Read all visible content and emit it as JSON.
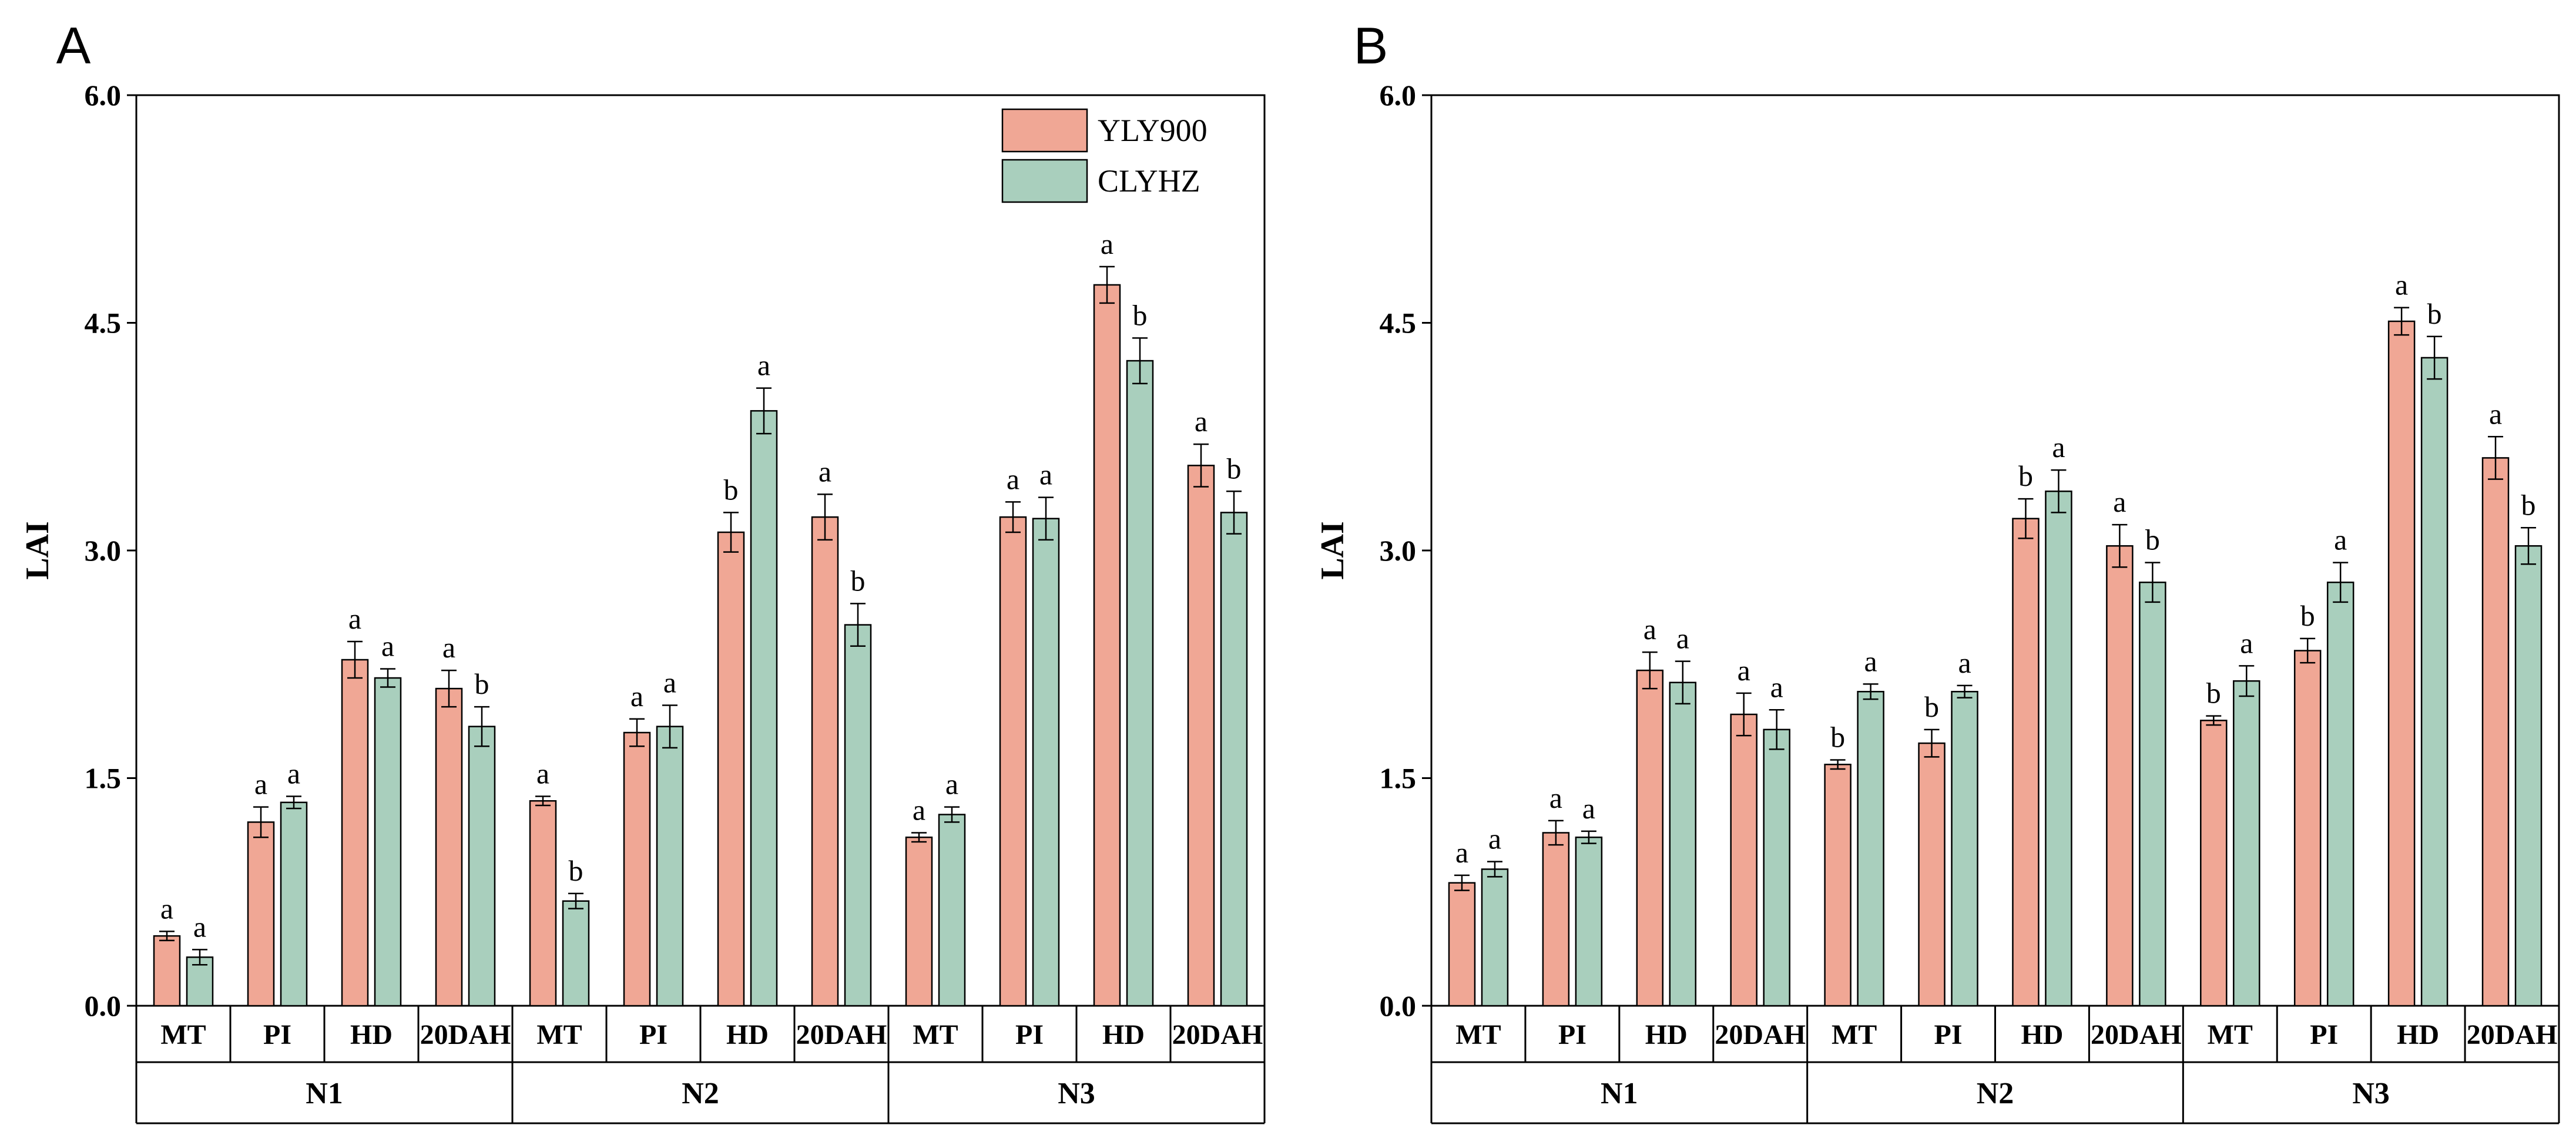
{
  "figure": {
    "series_colors": {
      "YLY900": "#f0a795",
      "CLYHZ": "#a9cfbd"
    },
    "letter_color": "#000000"
  },
  "chart_data": [
    {
      "type": "bar",
      "panel_label": "A",
      "ylabel": "LAI",
      "ylim": [
        0,
        6
      ],
      "yticks": [
        "0.0",
        "1.5",
        "3.0",
        "4.5",
        "6.0"
      ],
      "groups": [
        "N1",
        "N2",
        "N3"
      ],
      "stages": [
        "MT",
        "PI",
        "HD",
        "20DAH"
      ],
      "legend": {
        "placement": "top-right",
        "entries": [
          "YLY900",
          "CLYHZ"
        ]
      },
      "series": [
        {
          "name": "YLY900",
          "values": [
            [
              0.46,
              1.21,
              2.28,
              2.09
            ],
            [
              1.35,
              1.8,
              3.12,
              3.22
            ],
            [
              1.11,
              3.22,
              4.75,
              3.56
            ]
          ],
          "errors": [
            [
              0.03,
              0.1,
              0.12,
              0.12
            ],
            [
              0.03,
              0.09,
              0.13,
              0.15
            ],
            [
              0.03,
              0.1,
              0.12,
              0.14
            ]
          ],
          "letters": [
            [
              "a",
              "a",
              "a",
              "a"
            ],
            [
              "a",
              "a",
              "b",
              "a"
            ],
            [
              "a",
              "a",
              "a",
              "a"
            ]
          ]
        },
        {
          "name": "CLYHZ",
          "values": [
            [
              0.32,
              1.34,
              2.16,
              1.84
            ],
            [
              0.69,
              1.84,
              3.92,
              2.51
            ],
            [
              1.26,
              3.21,
              4.25,
              3.25
            ]
          ],
          "errors": [
            [
              0.05,
              0.04,
              0.06,
              0.13
            ],
            [
              0.05,
              0.14,
              0.15,
              0.14
            ],
            [
              0.05,
              0.14,
              0.15,
              0.14
            ]
          ],
          "letters": [
            [
              "a",
              "a",
              "a",
              "b"
            ],
            [
              "b",
              "a",
              "a",
              "b"
            ],
            [
              "a",
              "a",
              "b",
              "b"
            ]
          ]
        }
      ]
    },
    {
      "type": "bar",
      "panel_label": "B",
      "ylabel": "LAI",
      "ylim": [
        0,
        6
      ],
      "yticks": [
        "0.0",
        "1.5",
        "3.0",
        "4.5",
        "6.0"
      ],
      "groups": [
        "N1",
        "N2",
        "N3"
      ],
      "stages": [
        "MT",
        "PI",
        "HD",
        "20DAH"
      ],
      "series": [
        {
          "name": "YLY900",
          "values": [
            [
              0.81,
              1.14,
              2.21,
              1.92
            ],
            [
              1.59,
              1.73,
              3.21,
              3.03
            ],
            [
              1.88,
              2.34,
              4.51,
              3.61
            ]
          ],
          "errors": [
            [
              0.05,
              0.08,
              0.12,
              0.14
            ],
            [
              0.03,
              0.09,
              0.13,
              0.14
            ],
            [
              0.03,
              0.08,
              0.09,
              0.14
            ]
          ],
          "letters": [
            [
              "a",
              "a",
              "a",
              "a"
            ],
            [
              "b",
              "b",
              "b",
              "a"
            ],
            [
              "b",
              "b",
              "a",
              "a"
            ]
          ]
        },
        {
          "name": "CLYHZ",
          "values": [
            [
              0.9,
              1.11,
              2.13,
              1.82
            ],
            [
              2.07,
              2.07,
              3.39,
              2.79
            ],
            [
              2.14,
              2.79,
              4.27,
              3.03
            ]
          ],
          "errors": [
            [
              0.05,
              0.04,
              0.14,
              0.13
            ],
            [
              0.05,
              0.04,
              0.14,
              0.13
            ],
            [
              0.1,
              0.13,
              0.14,
              0.12
            ]
          ],
          "letters": [
            [
              "a",
              "a",
              "a",
              "a"
            ],
            [
              "a",
              "a",
              "a",
              "b"
            ],
            [
              "a",
              "a",
              "b",
              "b"
            ]
          ]
        }
      ]
    }
  ]
}
